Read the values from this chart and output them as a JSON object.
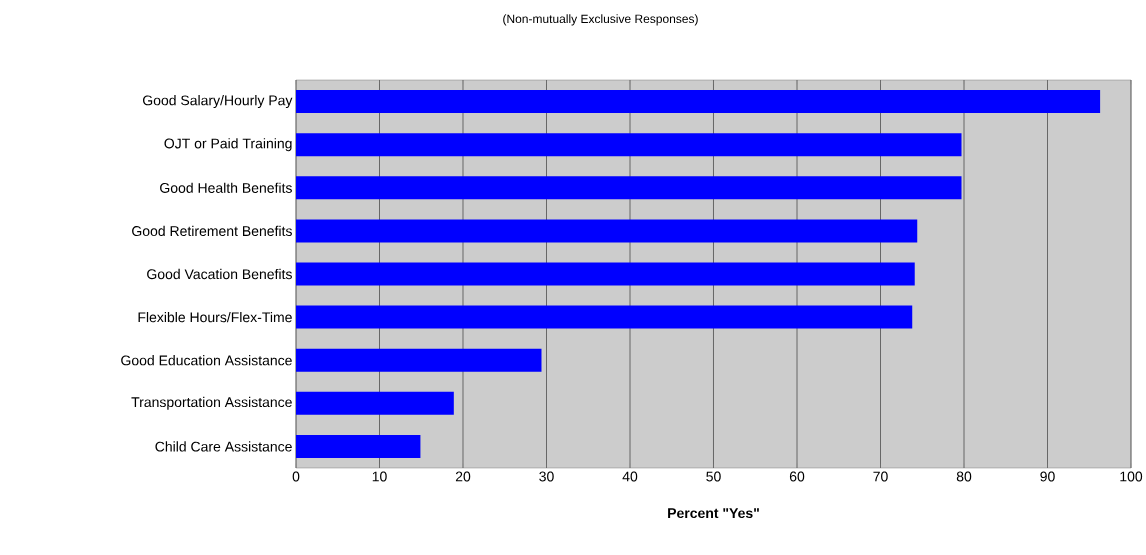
{
  "chart_data": {
    "type": "bar",
    "orientation": "horizontal",
    "title": "(Non-mutually  Exclusive Responses)",
    "xlabel": "Percent \"Yes\"",
    "categories": [
      "Good Salary/Hourly Pay",
      "OJT or Paid Training",
      "Good Health Benefits",
      "Good Retirement Benefits",
      "Good Vacation Benefits",
      "Flexible Hours/Flex-Time",
      "Good Education Assistance",
      "Transportation Assistance",
      "Child Care Assistance"
    ],
    "values": [
      96.3,
      79.7,
      79.7,
      74.4,
      74.1,
      73.8,
      29.4,
      18.9,
      14.9
    ],
    "color": "#0000ff",
    "xlim": [
      0,
      100
    ],
    "xticks": [
      0,
      10,
      20,
      30,
      40,
      50,
      60,
      70,
      80,
      90,
      100
    ],
    "grid": "x"
  }
}
